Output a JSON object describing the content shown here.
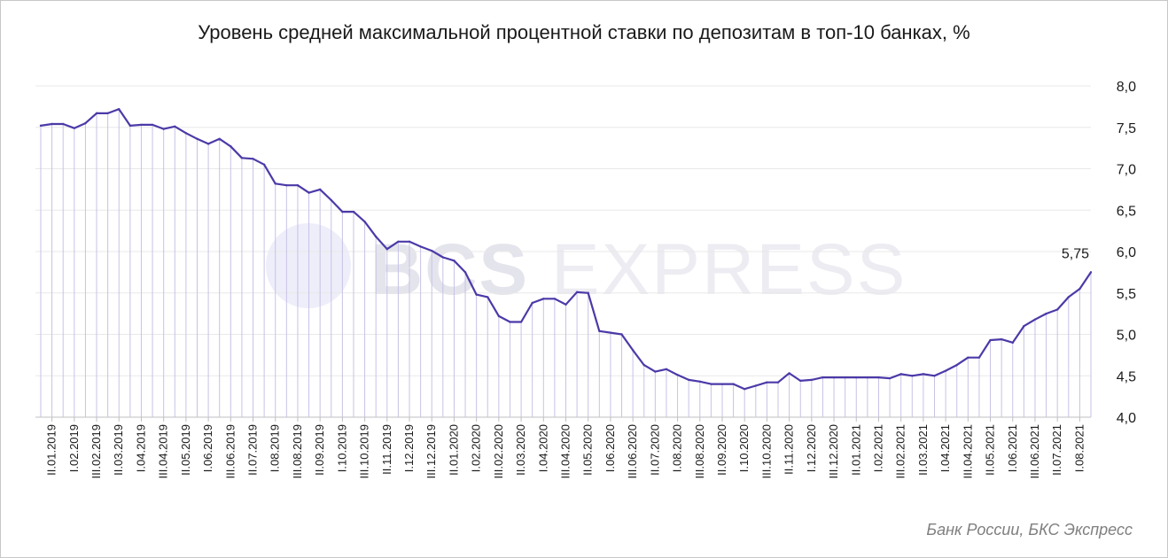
{
  "title": "Уровень средней максимальной процентной ставки по депозитам в топ-10 банках, %",
  "source": "Банк России, БКС Экспресс",
  "watermark": {
    "text_bold": "BCS",
    "text_light": " EXPRESS"
  },
  "colors": {
    "line": "#4b3aa8",
    "drop": "#c7c2e6",
    "grid": "#e8e8e8",
    "axis": "#bfbfbf"
  },
  "chart_data": {
    "type": "line",
    "title": "Уровень средней максимальной процентной ставки по депозитам в топ-10 банках, %",
    "xlabel": "",
    "ylabel": "",
    "ylim": [
      4.0,
      8.0
    ],
    "y_ticks": [
      "4,0",
      "4,5",
      "5,0",
      "5,5",
      "6,0",
      "6,5",
      "7,0",
      "7,5",
      "8,0"
    ],
    "grid": true,
    "x_tick_labels": [
      "II.01.2019",
      "I.02.2019",
      "III.02.2019",
      "II.03.2019",
      "I.04.2019",
      "III.04.2019",
      "II.05.2019",
      "I.06.2019",
      "III.06.2019",
      "II.07.2019",
      "I.08.2019",
      "III.08.2019",
      "II.09.2019",
      "I.10.2019",
      "III.10.2019",
      "II.11.2019",
      "I.12.2019",
      "III.12.2019",
      "II.01.2020",
      "I.02.2020",
      "III.02.2020",
      "II.03.2020",
      "I.04.2020",
      "III.04.2020",
      "II.05.2020",
      "I.06.2020",
      "III.06.2020",
      "II.07.2020",
      "I.08.2020",
      "III.08.2020",
      "II.09.2020",
      "I.10.2020",
      "III.10.2020",
      "II.11.2020",
      "I.12.2020",
      "III.12.2020",
      "II.01.2021",
      "I.02.2021",
      "III.02.2021",
      "II.03.2021",
      "I.04.2021",
      "III.04.2021",
      "II.05.2021",
      "I.06.2021",
      "III.06.2021",
      "II.07.2021",
      "I.08.2021"
    ],
    "series": [
      {
        "values": [
          7.52,
          7.54,
          7.54,
          7.49,
          7.55,
          7.67,
          7.67,
          7.72,
          7.52,
          7.53,
          7.53,
          7.48,
          7.51,
          7.43,
          7.36,
          7.3,
          7.36,
          7.27,
          7.13,
          7.12,
          7.05,
          6.82,
          6.8,
          6.8,
          6.71,
          6.75,
          6.62,
          6.48,
          6.48,
          6.36,
          6.18,
          6.03,
          6.12,
          6.12,
          6.06,
          6.01,
          5.93,
          5.89,
          5.75,
          5.48,
          5.45,
          5.22,
          5.15,
          5.15,
          5.38,
          5.43,
          5.43,
          5.36,
          5.51,
          5.5,
          5.04,
          5.02,
          5.0,
          4.81,
          4.63,
          4.55,
          4.58,
          4.51,
          4.45,
          4.43,
          4.4,
          4.4,
          4.4,
          4.34,
          4.38,
          4.42,
          4.42,
          4.53,
          4.44,
          4.45,
          4.48,
          4.48,
          4.48,
          4.48,
          4.48,
          4.48,
          4.47,
          4.52,
          4.5,
          4.52,
          4.5,
          4.56,
          4.63,
          4.72,
          4.72,
          4.93,
          4.94,
          4.9,
          5.1,
          5.18,
          5.25,
          5.3,
          5.45,
          5.55,
          5.75
        ]
      }
    ],
    "annotations": [
      {
        "text": "5,75",
        "target": "last-point"
      }
    ]
  }
}
